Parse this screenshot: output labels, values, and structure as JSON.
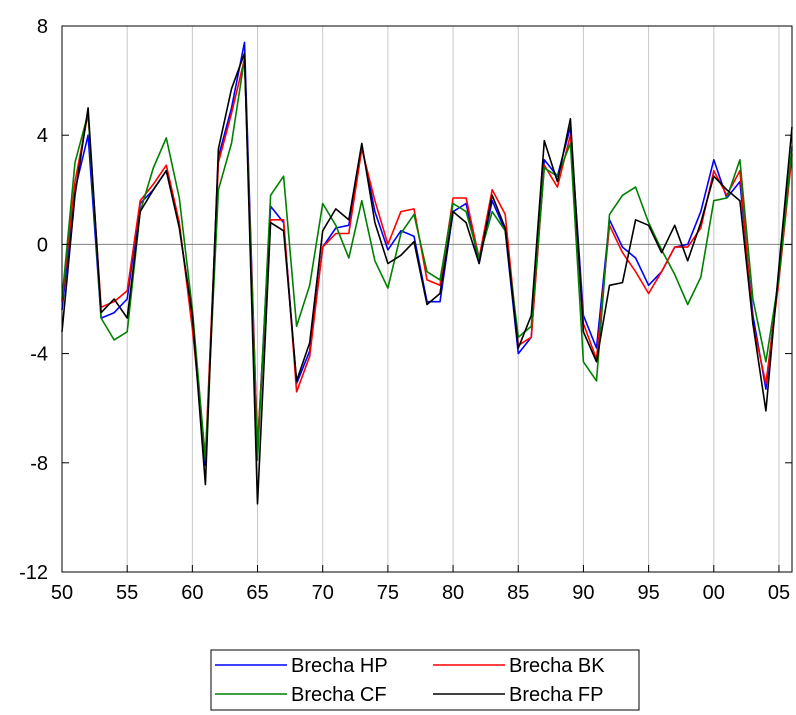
{
  "chart_data": {
    "type": "line",
    "title": "",
    "xlabel": "",
    "ylabel": "",
    "xlim": [
      1950,
      2006
    ],
    "ylim": [
      -12,
      8
    ],
    "x_ticks": [
      1950,
      1955,
      1960,
      1965,
      1970,
      1975,
      1980,
      1985,
      1990,
      1995,
      2000,
      2005
    ],
    "x_tick_labels": [
      "50",
      "55",
      "60",
      "65",
      "70",
      "75",
      "80",
      "85",
      "90",
      "95",
      "00",
      "05"
    ],
    "y_ticks": [
      -12,
      -8,
      -4,
      0,
      4,
      8
    ],
    "y_tick_labels": [
      "-12",
      "-8",
      "-4",
      "0",
      "4",
      "8"
    ],
    "grid": "vertical",
    "zero_line": true,
    "legend_position": "bottom-center",
    "x": [
      1950,
      1951,
      1952,
      1953,
      1954,
      1955,
      1956,
      1957,
      1958,
      1959,
      1960,
      1961,
      1962,
      1963,
      1964,
      1965,
      1966,
      1967,
      1968,
      1969,
      1970,
      1971,
      1972,
      1973,
      1974,
      1975,
      1976,
      1977,
      1978,
      1979,
      1980,
      1981,
      1982,
      1983,
      1984,
      1985,
      1986,
      1987,
      1988,
      1989,
      1990,
      1991,
      1992,
      1993,
      1994,
      1995,
      1996,
      1997,
      1998,
      1999,
      2000,
      2001,
      2002,
      2003,
      2004,
      2005,
      2006
    ],
    "series": [
      {
        "name": "Brecha HP",
        "color": "#0000ff",
        "values": [
          -2.4,
          2.0,
          4.0,
          -2.7,
          -2.5,
          -2.0,
          1.5,
          2.0,
          2.7,
          0.7,
          -2.8,
          -8.1,
          3.2,
          5.0,
          7.4,
          -7.5,
          1.4,
          0.8,
          -5.1,
          -3.9,
          -0.1,
          0.6,
          0.7,
          3.6,
          1.2,
          -0.2,
          0.5,
          0.3,
          -2.1,
          -2.1,
          1.2,
          1.5,
          -0.7,
          1.6,
          0.5,
          -4.0,
          -3.4,
          3.1,
          2.5,
          4.3,
          -2.6,
          -3.8,
          0.9,
          -0.1,
          -0.5,
          -1.5,
          -1.0,
          -0.1,
          0.0,
          1.2,
          3.1,
          1.7,
          2.3,
          -2.6,
          -5.3,
          -1.0,
          3.5
        ]
      },
      {
        "name": "Brecha BK",
        "color": "#ff0000",
        "values": [
          -2.1,
          2.3,
          4.8,
          -2.3,
          -2.1,
          -1.7,
          1.6,
          2.2,
          2.9,
          0.8,
          -3.1,
          -7.8,
          3.0,
          4.8,
          6.8,
          -7.4,
          0.9,
          0.9,
          -5.4,
          -4.1,
          -0.1,
          0.4,
          0.4,
          3.5,
          1.6,
          0.0,
          1.2,
          1.3,
          -1.3,
          -1.5,
          1.7,
          1.7,
          -0.5,
          2.0,
          1.1,
          -3.7,
          -3.4,
          2.9,
          2.1,
          4.0,
          -2.9,
          -4.2,
          0.7,
          -0.3,
          -1.0,
          -1.8,
          -1.0,
          -0.1,
          -0.1,
          0.6,
          2.7,
          1.8,
          2.7,
          -2.9,
          -5.1,
          -1.3,
          3.3
        ]
      },
      {
        "name": "Brecha CF",
        "color": "#008000",
        "values": [
          -2.0,
          3.0,
          4.8,
          -2.7,
          -3.5,
          -3.2,
          1.2,
          2.8,
          3.9,
          1.7,
          -2.4,
          -7.9,
          2.0,
          3.7,
          6.8,
          -7.9,
          1.8,
          2.5,
          -3.0,
          -1.5,
          1.5,
          0.7,
          -0.5,
          1.6,
          -0.6,
          -1.6,
          0.4,
          1.1,
          -1.0,
          -1.3,
          1.5,
          1.2,
          -0.5,
          1.2,
          0.5,
          -3.4,
          -3.0,
          2.8,
          2.5,
          3.7,
          -4.3,
          -5.0,
          1.1,
          1.8,
          2.1,
          0.8,
          -0.2,
          -1.1,
          -2.2,
          -1.2,
          1.6,
          1.7,
          3.1,
          -2.0,
          -4.3,
          -1.2,
          3.6
        ]
      },
      {
        "name": "Brecha FP",
        "color": "#000000",
        "values": [
          -3.2,
          1.8,
          5.0,
          -2.5,
          -2.0,
          -2.7,
          1.2,
          2.0,
          2.7,
          0.6,
          -2.6,
          -8.8,
          3.5,
          5.7,
          7.0,
          -9.5,
          0.8,
          0.5,
          -5.0,
          -3.6,
          0.5,
          1.3,
          0.9,
          3.7,
          0.8,
          -0.7,
          -0.4,
          0.1,
          -2.2,
          -1.8,
          1.2,
          0.8,
          -0.7,
          1.8,
          0.6,
          -3.8,
          -2.6,
          3.8,
          2.3,
          4.6,
          -3.2,
          -4.3,
          -1.5,
          -1.4,
          0.9,
          0.7,
          -0.3,
          0.7,
          -0.6,
          0.8,
          2.5,
          2.0,
          1.6,
          -2.9,
          -6.1,
          -0.8,
          4.3
        ]
      }
    ]
  }
}
